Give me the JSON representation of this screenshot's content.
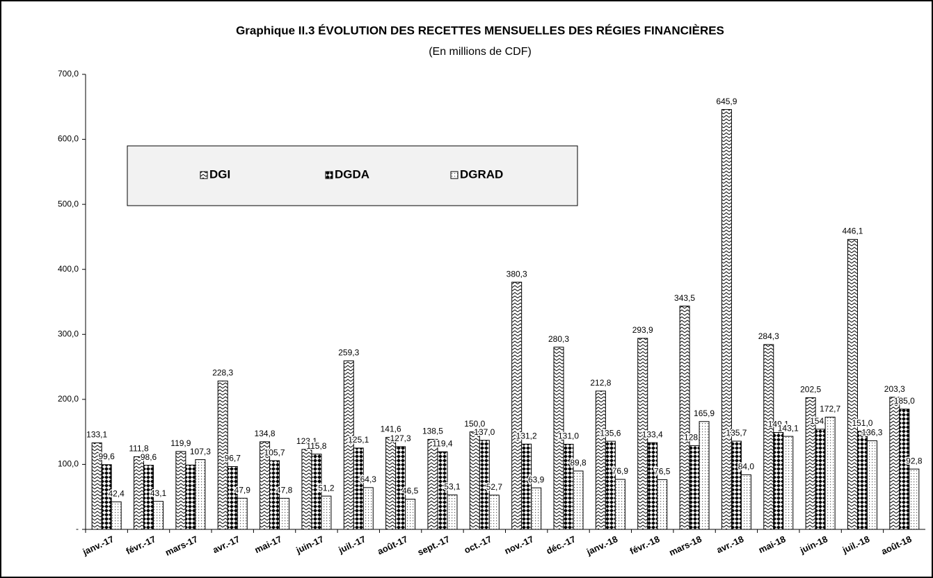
{
  "chart_data": {
    "type": "bar",
    "title": "Graphique II.3 ÉVOLUTION DES RECETTES MENSUELLES DES RÉGIES FINANCIÈRES",
    "subtitle": "(En millions de CDF)",
    "categories": [
      "janv.-17",
      "févr.-17",
      "mars-17",
      "avr.-17",
      "mai-17",
      "juin-17",
      "juil.-17",
      "août-17",
      "sept.-17",
      "oct.-17",
      "nov.-17",
      "déc.-17",
      "janv.-18",
      "févr.-18",
      "mars-18",
      "avr.-18",
      "mai-18",
      "juin-18",
      "juil.-18",
      "août-18"
    ],
    "series": [
      {
        "name": "DGI",
        "color": "#000000",
        "pattern": "zigzag",
        "values": [
          133.1,
          111.8,
          119.9,
          228.3,
          134.8,
          123.1,
          259.3,
          141.6,
          138.5,
          150.0,
          380.3,
          280.3,
          212.8,
          293.9,
          343.5,
          645.9,
          284.3,
          202.5,
          446.1,
          203.3
        ],
        "value_labels": [
          "133,1",
          "111,8",
          "119,9",
          "228,3",
          "134,8",
          "123,1",
          "259,3",
          "141,6",
          "138,5",
          "150,0",
          "380,3",
          "280,3",
          "212,8",
          "293,9",
          "343,5",
          "645,9",
          "284,3",
          "202,5",
          "446,1",
          "203,3"
        ]
      },
      {
        "name": "DGDA",
        "color": "#000000",
        "pattern": "diamond",
        "values": [
          99.6,
          98.6,
          99,
          96.7,
          105.7,
          115.8,
          125.1,
          127.3,
          119.4,
          137.0,
          131.2,
          131.0,
          135.6,
          133.4,
          128.7,
          135.7,
          149.1,
          154.1,
          151.0,
          185.0
        ],
        "value_labels": [
          "99,6",
          "98,6",
          null,
          "96,7",
          "105,7",
          "115,8",
          "125,1",
          "127,3",
          "119,4",
          "137,0",
          "131,2",
          "131,0",
          "135,6",
          "133,4",
          "128,7",
          "135,7",
          "149,1",
          "154,1",
          "151,0",
          "185,0"
        ]
      },
      {
        "name": "DGRAD",
        "color": "#000000",
        "pattern": "dots",
        "values": [
          42.4,
          43.1,
          107.3,
          47.9,
          47.8,
          51.2,
          64.3,
          46.5,
          53.1,
          52.7,
          63.9,
          89.8,
          76.9,
          76.5,
          165.9,
          84.0,
          143.1,
          172.7,
          136.3,
          92.8
        ],
        "value_labels": [
          "42,4",
          "43,1",
          "107,3",
          "47,9",
          "47,8",
          "51,2",
          "64,3",
          "46,5",
          "53,1",
          "52,7",
          "63,9",
          "89,8",
          "76,9",
          "76,5",
          "165,9",
          "84,0",
          "143,1",
          "172,7",
          "136,3",
          "92,8"
        ]
      }
    ],
    "ylim": [
      0,
      700
    ],
    "yticks": [
      {
        "value": 0,
        "label": "-"
      },
      {
        "value": 100,
        "label": "100,0"
      },
      {
        "value": 200,
        "label": "200,0"
      },
      {
        "value": 300,
        "label": "300,0"
      },
      {
        "value": 400,
        "label": "400,0"
      },
      {
        "value": 500,
        "label": "500,0"
      },
      {
        "value": 600,
        "label": "600,0"
      },
      {
        "value": 700,
        "label": "700,0"
      }
    ]
  }
}
